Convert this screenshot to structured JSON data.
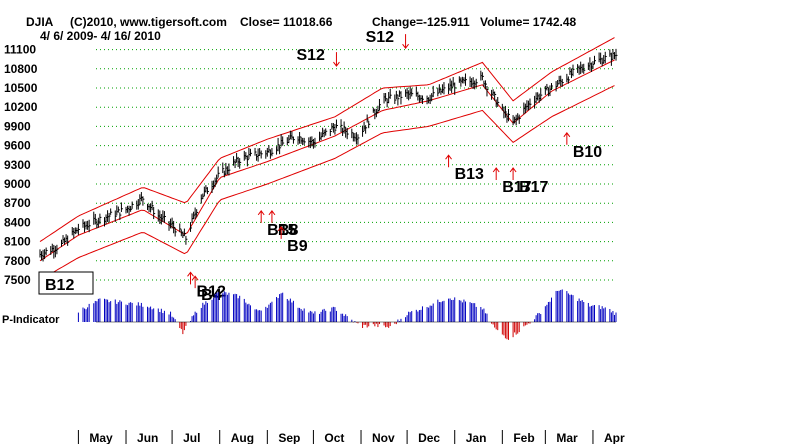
{
  "header": {
    "symbol": "DJIA",
    "copyright": "(C)2010, www.tigersoft.com",
    "close": "Close=  11018.66",
    "change": "Change=-125.911",
    "volume": "Volume= 1742.48",
    "date_range": "4/ 6/ 2009- 4/ 16/ 2010"
  },
  "current_signal": "B12",
  "indicator_label": "P-Indicator",
  "colors": {
    "price_bars": "#000000",
    "bands": "#e00000",
    "grid": "#00a000",
    "indicator_positive": "#0000c0",
    "indicator_negative": "#d00000",
    "signal_arrow": "#e00000"
  },
  "chart_data": {
    "type": "ohlc",
    "y_ticks": [
      7500,
      7800,
      8100,
      8400,
      8700,
      9000,
      9300,
      9600,
      9900,
      10200,
      10500,
      10800,
      11100
    ],
    "ylim": [
      7500,
      11250
    ],
    "x_months": [
      "May",
      "Jun",
      "Jul",
      "Aug",
      "Sep",
      "Oct",
      "Nov",
      "Dec",
      "Jan",
      "Feb",
      "Mar",
      "Apr"
    ],
    "close_path": [
      [
        "2009-04-06",
        7900
      ],
      [
        "2009-04-20",
        8050
      ],
      [
        "2009-05-01",
        8300
      ],
      [
        "2009-05-15",
        8450
      ],
      [
        "2009-06-01",
        8600
      ],
      [
        "2009-06-12",
        8780
      ],
      [
        "2009-06-22",
        8500
      ],
      [
        "2009-07-01",
        8350
      ],
      [
        "2009-07-10",
        8150
      ],
      [
        "2009-07-20",
        8800
      ],
      [
        "2009-08-01",
        9150
      ],
      [
        "2009-08-15",
        9400
      ],
      [
        "2009-09-01",
        9500
      ],
      [
        "2009-09-20",
        9750
      ],
      [
        "2009-10-01",
        9650
      ],
      [
        "2009-10-15",
        9900
      ],
      [
        "2009-10-30",
        9750
      ],
      [
        "2009-11-15",
        10300
      ],
      [
        "2009-12-01",
        10400
      ],
      [
        "2009-12-15",
        10350
      ],
      [
        "2010-01-01",
        10550
      ],
      [
        "2010-01-19",
        10650
      ],
      [
        "2010-02-01",
        10150
      ],
      [
        "2010-02-08",
        9950
      ],
      [
        "2010-02-20",
        10300
      ],
      [
        "2010-03-05",
        10500
      ],
      [
        "2010-03-20",
        10750
      ],
      [
        "2010-04-01",
        10900
      ],
      [
        "2010-04-16",
        11018.66
      ]
    ],
    "upper_band": [
      [
        "2009-04-06",
        8100
      ],
      [
        "2009-05-01",
        8500
      ],
      [
        "2009-06-12",
        8950
      ],
      [
        "2009-07-10",
        8700
      ],
      [
        "2009-08-01",
        9400
      ],
      [
        "2009-09-01",
        9700
      ],
      [
        "2009-10-15",
        10050
      ],
      [
        "2009-11-15",
        10500
      ],
      [
        "2009-12-15",
        10550
      ],
      [
        "2010-01-19",
        10900
      ],
      [
        "2010-02-08",
        10300
      ],
      [
        "2010-03-05",
        10750
      ],
      [
        "2010-04-16",
        11300
      ]
    ],
    "middle_band": [
      [
        "2009-04-06",
        7800
      ],
      [
        "2009-05-01",
        8200
      ],
      [
        "2009-06-12",
        8600
      ],
      [
        "2009-07-10",
        8200
      ],
      [
        "2009-08-01",
        9100
      ],
      [
        "2009-09-01",
        9350
      ],
      [
        "2009-10-15",
        9750
      ],
      [
        "2009-11-15",
        10150
      ],
      [
        "2009-12-15",
        10300
      ],
      [
        "2010-01-19",
        10550
      ],
      [
        "2010-02-08",
        9950
      ],
      [
        "2010-03-05",
        10450
      ],
      [
        "2010-04-16",
        10950
      ]
    ],
    "lower_band": [
      [
        "2009-04-06",
        7500
      ],
      [
        "2009-05-01",
        7850
      ],
      [
        "2009-06-12",
        8250
      ],
      [
        "2009-07-10",
        7900
      ],
      [
        "2009-08-01",
        8750
      ],
      [
        "2009-09-01",
        9000
      ],
      [
        "2009-10-15",
        9400
      ],
      [
        "2009-11-15",
        9800
      ],
      [
        "2009-12-15",
        9900
      ],
      [
        "2010-01-19",
        10150
      ],
      [
        "2010-02-08",
        9650
      ],
      [
        "2010-03-05",
        10050
      ],
      [
        "2010-04-16",
        10550
      ]
    ],
    "signals": [
      {
        "label": "B12",
        "date": "2009-07-13",
        "value": 7620,
        "dir": "up"
      },
      {
        "label": "B4",
        "date": "2009-07-16",
        "value": 7560,
        "dir": "up"
      },
      {
        "label": "B15",
        "date": "2009-08-28",
        "value": 8580,
        "dir": "up"
      },
      {
        "label": "B8",
        "date": "2009-09-04",
        "value": 8580,
        "dir": "up"
      },
      {
        "label": "B9",
        "date": "2009-09-10",
        "value": 8330,
        "dir": "up"
      },
      {
        "label": "S12",
        "date": "2009-10-16",
        "value": 10780,
        "dir": "down"
      },
      {
        "label": "S12",
        "date": "2009-11-30",
        "value": 11060,
        "dir": "down"
      },
      {
        "label": "B13",
        "date": "2009-12-28",
        "value": 9450,
        "dir": "up"
      },
      {
        "label": "B17",
        "date": "2010-01-28",
        "value": 9250,
        "dir": "up"
      },
      {
        "label": "B17",
        "date": "2010-02-08",
        "value": 9250,
        "dir": "up"
      },
      {
        "label": "B10",
        "date": "2010-03-15",
        "value": 9800,
        "dir": "up"
      }
    ],
    "p_indicator": [
      [
        "2009-05-01",
        20
      ],
      [
        "2009-05-15",
        40
      ],
      [
        "2009-06-01",
        35
      ],
      [
        "2009-06-15",
        30
      ],
      [
        "2009-06-30",
        15
      ],
      [
        "2009-07-08",
        -20
      ],
      [
        "2009-07-18",
        25
      ],
      [
        "2009-08-01",
        55
      ],
      [
        "2009-08-15",
        45
      ],
      [
        "2009-08-25",
        20
      ],
      [
        "2009-09-05",
        35
      ],
      [
        "2009-09-10",
        55
      ],
      [
        "2009-09-20",
        30
      ],
      [
        "2009-10-01",
        15
      ],
      [
        "2009-10-15",
        25
      ],
      [
        "2009-10-25",
        5
      ],
      [
        "2009-11-01",
        -8
      ],
      [
        "2009-11-10",
        -6
      ],
      [
        "2009-11-20",
        -10
      ],
      [
        "2009-12-01",
        15
      ],
      [
        "2009-12-15",
        30
      ],
      [
        "2009-12-28",
        45
      ],
      [
        "2010-01-10",
        35
      ],
      [
        "2010-01-19",
        25
      ],
      [
        "2010-01-28",
        -15
      ],
      [
        "2010-02-05",
        -30
      ],
      [
        "2010-02-15",
        -10
      ],
      [
        "2010-02-25",
        15
      ],
      [
        "2010-03-10",
        60
      ],
      [
        "2010-03-20",
        45
      ],
      [
        "2010-03-30",
        30
      ],
      [
        "2010-04-10",
        25
      ],
      [
        "2010-04-16",
        15
      ]
    ]
  }
}
